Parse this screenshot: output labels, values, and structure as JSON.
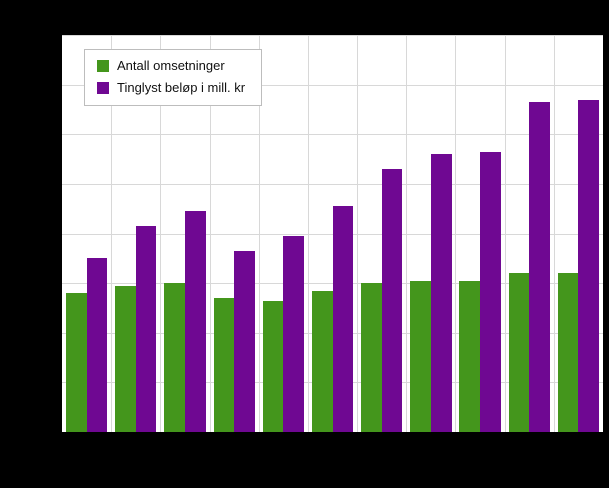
{
  "window": {
    "background_color": "#000000",
    "plot_background_color": "#ffffff",
    "gridline_color": "#d8d8d8"
  },
  "chart_data": {
    "type": "bar",
    "grouped": true,
    "title": "",
    "xlabel": "",
    "ylabel": "",
    "categories": [
      "",
      "",
      "",
      "",
      "",
      "",
      "",
      "",
      "",
      "",
      ""
    ],
    "series": [
      {
        "name": "Antall omsetninger",
        "color": "#44961c",
        "values": [
          28,
          29.5,
          30,
          27,
          26.5,
          28.5,
          30,
          30.5,
          30.5,
          32,
          32
        ]
      },
      {
        "name": "Tinglyst beløp i mill. kr",
        "color": "#6f0892",
        "values": [
          35,
          41.5,
          44.5,
          36.5,
          39.5,
          45.5,
          53,
          56,
          56.5,
          66.5,
          67
        ]
      }
    ],
    "ylim": [
      0,
      80
    ],
    "y_gridline_step": 10,
    "grid": true,
    "axis_tick_labels_visible": false,
    "legend_position": "top-left-inside"
  },
  "legend": {
    "items": [
      {
        "label": "Antall omsetninger",
        "color": "#44961c"
      },
      {
        "label": "Tinglyst beløp i mill. kr",
        "color": "#6f0892"
      }
    ]
  }
}
